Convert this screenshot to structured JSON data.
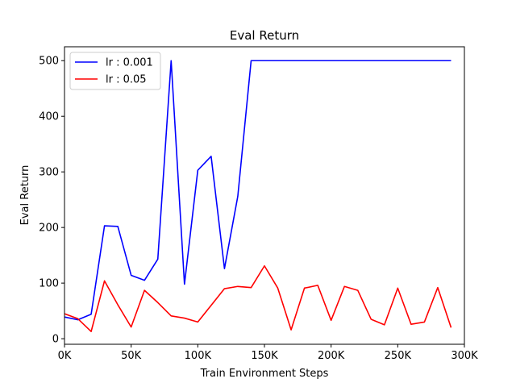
{
  "chart_data": {
    "type": "line",
    "title": "Eval Return",
    "xlabel": "Train Environment Steps",
    "ylabel": "Eval Return",
    "xlim": [
      0,
      300000
    ],
    "ylim": [
      -10,
      525
    ],
    "x_ticks": [
      0,
      50000,
      100000,
      150000,
      200000,
      250000,
      300000
    ],
    "x_tick_labels": [
      "0K",
      "50K",
      "100K",
      "150K",
      "200K",
      "250K",
      "300K"
    ],
    "y_ticks": [
      0,
      100,
      200,
      300,
      400,
      500
    ],
    "y_tick_labels": [
      "0",
      "100",
      "200",
      "300",
      "400",
      "500"
    ],
    "grid": false,
    "legend_position": "top-left",
    "series": [
      {
        "name": "lr : 0.001",
        "color": "#0000ff",
        "x": [
          0,
          10000,
          20000,
          30000,
          40000,
          50000,
          60000,
          70000,
          80000,
          90000,
          100000,
          110000,
          120000,
          130000,
          140000,
          150000,
          160000,
          170000,
          180000,
          190000,
          200000,
          210000,
          220000,
          230000,
          240000,
          250000,
          260000,
          270000,
          280000,
          290000
        ],
        "y": [
          39,
          34,
          44,
          203,
          202,
          114,
          105,
          143,
          500,
          98,
          303,
          328,
          126,
          256,
          500,
          500,
          500,
          500,
          500,
          500,
          500,
          500,
          500,
          500,
          500,
          500,
          500,
          500,
          500,
          500
        ]
      },
      {
        "name": "lr : 0.05",
        "color": "#ff0000",
        "x": [
          0,
          10000,
          20000,
          30000,
          40000,
          50000,
          60000,
          70000,
          80000,
          90000,
          100000,
          110000,
          120000,
          130000,
          140000,
          150000,
          160000,
          170000,
          180000,
          190000,
          200000,
          210000,
          220000,
          230000,
          240000,
          250000,
          260000,
          270000,
          280000,
          290000
        ],
        "y": [
          45,
          36,
          13,
          104,
          61,
          21,
          87,
          65,
          41,
          37,
          30,
          60,
          90,
          94,
          92,
          131,
          91,
          16,
          91,
          96,
          33,
          94,
          87,
          35,
          25,
          91,
          26,
          30,
          92,
          20
        ]
      }
    ]
  }
}
